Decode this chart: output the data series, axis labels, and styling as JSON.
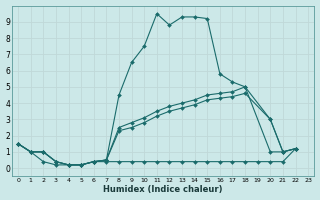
{
  "xlabel": "Humidex (Indice chaleur)",
  "bg_color": "#cce8e8",
  "grid_color": "#c0d8d8",
  "line_color": "#1a6b6b",
  "xlim": [
    -0.5,
    23.5
  ],
  "ylim": [
    -0.5,
    10.0
  ],
  "xticks": [
    0,
    1,
    2,
    3,
    4,
    5,
    6,
    7,
    8,
    9,
    10,
    11,
    12,
    13,
    14,
    15,
    16,
    17,
    18,
    19,
    20,
    21,
    22,
    23
  ],
  "yticks": [
    0,
    1,
    2,
    3,
    4,
    5,
    6,
    7,
    8,
    9
  ],
  "series": [
    {
      "x": [
        0,
        1,
        2,
        3,
        4,
        5,
        6,
        7,
        8,
        9,
        10,
        11,
        12,
        13,
        14,
        15,
        16,
        17,
        18,
        20,
        21,
        22
      ],
      "y": [
        1.5,
        1.0,
        1.0,
        0.4,
        0.2,
        0.2,
        0.4,
        0.5,
        4.5,
        6.5,
        7.5,
        9.5,
        8.8,
        9.3,
        9.3,
        9.2,
        5.8,
        5.3,
        5.0,
        1.0,
        1.0,
        1.2
      ]
    },
    {
      "x": [
        0,
        1,
        2,
        3,
        4,
        5,
        6,
        7,
        8,
        9,
        10,
        11,
        12,
        13,
        14,
        15,
        16,
        17,
        18,
        20,
        21,
        22
      ],
      "y": [
        1.5,
        1.0,
        1.0,
        0.4,
        0.2,
        0.2,
        0.4,
        0.5,
        2.5,
        2.8,
        3.1,
        3.5,
        3.8,
        4.0,
        4.2,
        4.5,
        4.6,
        4.7,
        5.0,
        3.0,
        1.0,
        1.2
      ]
    },
    {
      "x": [
        0,
        1,
        2,
        3,
        4,
        5,
        6,
        7,
        8,
        9,
        10,
        11,
        12,
        13,
        14,
        15,
        16,
        17,
        18,
        20,
        21,
        22
      ],
      "y": [
        1.5,
        1.0,
        1.0,
        0.4,
        0.2,
        0.2,
        0.4,
        0.5,
        2.3,
        2.5,
        2.8,
        3.2,
        3.5,
        3.7,
        3.9,
        4.2,
        4.3,
        4.4,
        4.6,
        3.0,
        1.0,
        1.2
      ]
    },
    {
      "x": [
        0,
        1,
        2,
        3,
        4,
        5,
        6,
        7,
        8,
        9,
        10,
        11,
        12,
        13,
        14,
        15,
        16,
        17,
        18,
        19,
        20,
        21,
        22
      ],
      "y": [
        1.5,
        1.0,
        0.4,
        0.2,
        0.2,
        0.2,
        0.4,
        0.4,
        0.4,
        0.4,
        0.4,
        0.4,
        0.4,
        0.4,
        0.4,
        0.4,
        0.4,
        0.4,
        0.4,
        0.4,
        0.4,
        0.4,
        1.2
      ]
    }
  ]
}
